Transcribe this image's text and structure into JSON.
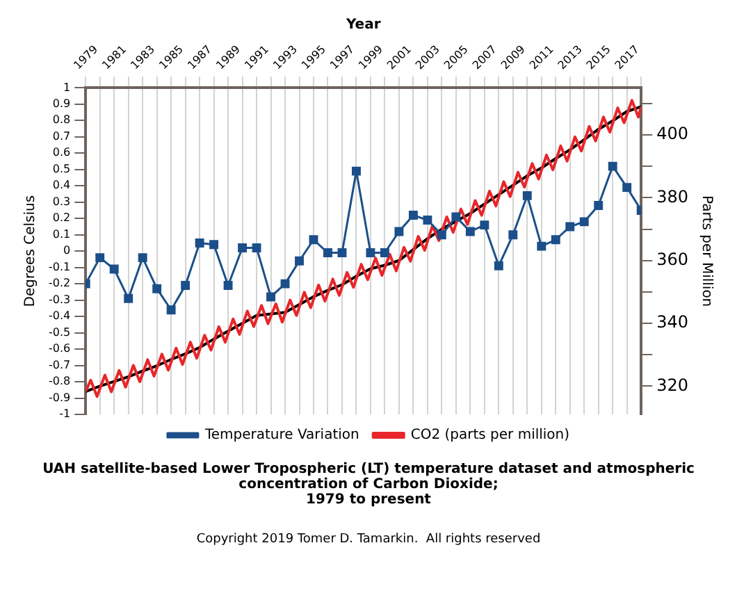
{
  "chart_data": {
    "type": "line",
    "title": "UAH satellite-based Lower Tropospheric (LT) temperature dataset and atmospheric concentration of Carbon Dioxide;\n1979 to present",
    "xlabel": "Year",
    "ylabel": "Degrees Celsius",
    "y2label": "Parts per Million",
    "annotations": [
      "Copyright 2019 Tomer D. Tamarkin.  All rights reserved"
    ],
    "x": [
      1979,
      1980,
      1981,
      1982,
      1983,
      1984,
      1985,
      1986,
      1987,
      1988,
      1989,
      1990,
      1991,
      1992,
      1993,
      1994,
      1995,
      1996,
      1997,
      1998,
      1999,
      2000,
      2001,
      2002,
      2003,
      2004,
      2005,
      2006,
      2007,
      2008,
      2009,
      2010,
      2011,
      2012,
      2013,
      2014,
      2015,
      2016,
      2017,
      2018
    ],
    "series": [
      {
        "name": "Temperature Variation",
        "color": "#1c4f8a",
        "marker": "square",
        "values": [
          -0.2,
          -0.04,
          -0.11,
          -0.29,
          -0.04,
          -0.23,
          -0.36,
          -0.21,
          0.05,
          0.04,
          -0.21,
          0.02,
          0.02,
          -0.28,
          -0.2,
          -0.06,
          0.07,
          -0.01,
          -0.01,
          0.49,
          -0.01,
          -0.01,
          0.12,
          0.22,
          0.19,
          0.1,
          0.21,
          0.12,
          0.16,
          -0.09,
          0.1,
          0.34,
          0.03,
          0.07,
          0.15,
          0.18,
          0.28,
          0.52,
          0.39,
          0.25
        ]
      },
      {
        "name": "CO2 (parts per million)",
        "color": "#e8262a",
        "axis": "y2",
        "marker": "none",
        "x": [
          1979,
          1979.35,
          1979.8,
          1980.35,
          1980.8,
          1981.35,
          1981.8,
          1982.35,
          1982.8,
          1983.35,
          1983.8,
          1984.35,
          1984.8,
          1985.35,
          1985.8,
          1986.35,
          1986.8,
          1987.35,
          1987.8,
          1988.35,
          1988.8,
          1989.35,
          1989.8,
          1990.35,
          1990.8,
          1991.35,
          1991.8,
          1992.35,
          1992.8,
          1993.35,
          1993.8,
          1994.35,
          1994.8,
          1995.35,
          1995.8,
          1996.35,
          1996.8,
          1997.35,
          1997.8,
          1998.35,
          1998.8,
          1999.35,
          1999.8,
          2000.35,
          2000.8,
          2001.35,
          2001.8,
          2002.35,
          2002.8,
          2003.35,
          2003.8,
          2004.35,
          2004.8,
          2005.35,
          2005.8,
          2006.35,
          2006.8,
          2007.35,
          2007.8,
          2008.35,
          2008.8,
          2009.35,
          2009.8,
          2010.35,
          2010.8,
          2011.35,
          2011.8,
          2012.35,
          2012.8,
          2013.35,
          2013.8,
          2014.35,
          2014.8,
          2015.35,
          2015.8,
          2016.35,
          2016.8,
          2017.35,
          2017.8,
          2018
        ],
        "values": [
          318.3,
          321.9,
          316.7,
          323.5,
          318.2,
          325.0,
          319.7,
          326.6,
          321.4,
          328.4,
          323.2,
          330.2,
          325.1,
          332.1,
          326.9,
          334.0,
          328.9,
          336.2,
          331.5,
          338.9,
          334.0,
          341.4,
          336.5,
          343.9,
          339.0,
          345.7,
          339.9,
          346.2,
          340.4,
          347.4,
          342.5,
          349.9,
          345.0,
          352.2,
          347.1,
          354.1,
          348.9,
          356.2,
          351.5,
          358.8,
          353.9,
          360.8,
          355.3,
          362.0,
          356.7,
          364.2,
          359.8,
          367.7,
          363.3,
          371.1,
          366.4,
          373.9,
          369.0,
          376.4,
          371.5,
          379.1,
          374.4,
          382.1,
          377.4,
          385.1,
          380.4,
          388.1,
          383.4,
          390.9,
          386.0,
          393.6,
          388.9,
          396.5,
          391.7,
          399.4,
          394.9,
          402.7,
          398.1,
          405.7,
          400.9,
          408.6,
          403.9,
          411.0,
          405.7,
          409.0
        ]
      },
      {
        "color": "#000000",
        "axis": "y2",
        "marker": "none",
        "values": [
          318.3,
          320,
          321.5,
          323,
          324.8,
          326.5,
          328.5,
          330.3,
          332.3,
          335,
          337.5,
          340,
          342.5,
          343,
          343.5,
          346,
          348.5,
          350.5,
          352.3,
          355,
          357.4,
          358.5,
          360,
          363.5,
          367,
          370,
          372.5,
          375,
          378,
          381,
          384,
          387,
          389.5,
          392.5,
          395.3,
          398.5,
          401.8,
          404.5,
          407.5,
          409
        ]
      }
    ],
    "xlim": [
      1979,
      2018
    ],
    "xticks": [
      1979,
      {
        "value": 1980,
        "label": null
      },
      1981,
      {
        "value": 1982,
        "label": null
      },
      1983,
      {
        "value": 1984,
        "label": null
      },
      1985,
      {
        "value": 1986,
        "label": null
      },
      1987,
      {
        "value": 1988,
        "label": null
      },
      1989,
      {
        "value": 1990,
        "label": null
      },
      1991,
      {
        "value": 1992,
        "label": null
      },
      1993,
      {
        "value": 1994,
        "label": null
      },
      1995,
      {
        "value": 1996,
        "label": null
      },
      1997,
      {
        "value": 1998,
        "label": null
      },
      1999,
      {
        "value": 2000,
        "label": null
      },
      2001,
      {
        "value": 2002,
        "label": null
      },
      2003,
      {
        "value": 2004,
        "label": null
      },
      2005,
      {
        "value": 2006,
        "label": null
      },
      2007,
      {
        "value": 2008,
        "label": null
      },
      2009,
      {
        "value": 2010,
        "label": null
      },
      2011,
      {
        "value": 2012,
        "label": null
      },
      2013,
      {
        "value": 2014,
        "label": null
      },
      2015,
      {
        "value": 2016,
        "label": null
      },
      2017,
      {
        "value": 2018,
        "label": null
      }
    ],
    "ylim": [
      -1,
      1
    ],
    "yticks": [
      -1,
      -0.9,
      -0.8,
      -0.7,
      -0.6,
      -0.5,
      -0.4,
      -0.3,
      -0.2,
      -0.1,
      0,
      0.1,
      0.2,
      0.3,
      0.4,
      0.5,
      0.6,
      0.7,
      0.8,
      0.9,
      1
    ],
    "y2lim": [
      311,
      415
    ],
    "y2ticks": [
      320,
      {
        "value": 330,
        "label": null
      },
      340,
      {
        "value": 350,
        "label": null
      },
      360,
      {
        "value": 370,
        "label": null
      },
      380,
      {
        "value": 390,
        "label": null
      },
      400,
      {
        "value": 410,
        "label": null
      }
    ],
    "grid": "x",
    "legend": "bottom",
    "line_style": "solid"
  }
}
